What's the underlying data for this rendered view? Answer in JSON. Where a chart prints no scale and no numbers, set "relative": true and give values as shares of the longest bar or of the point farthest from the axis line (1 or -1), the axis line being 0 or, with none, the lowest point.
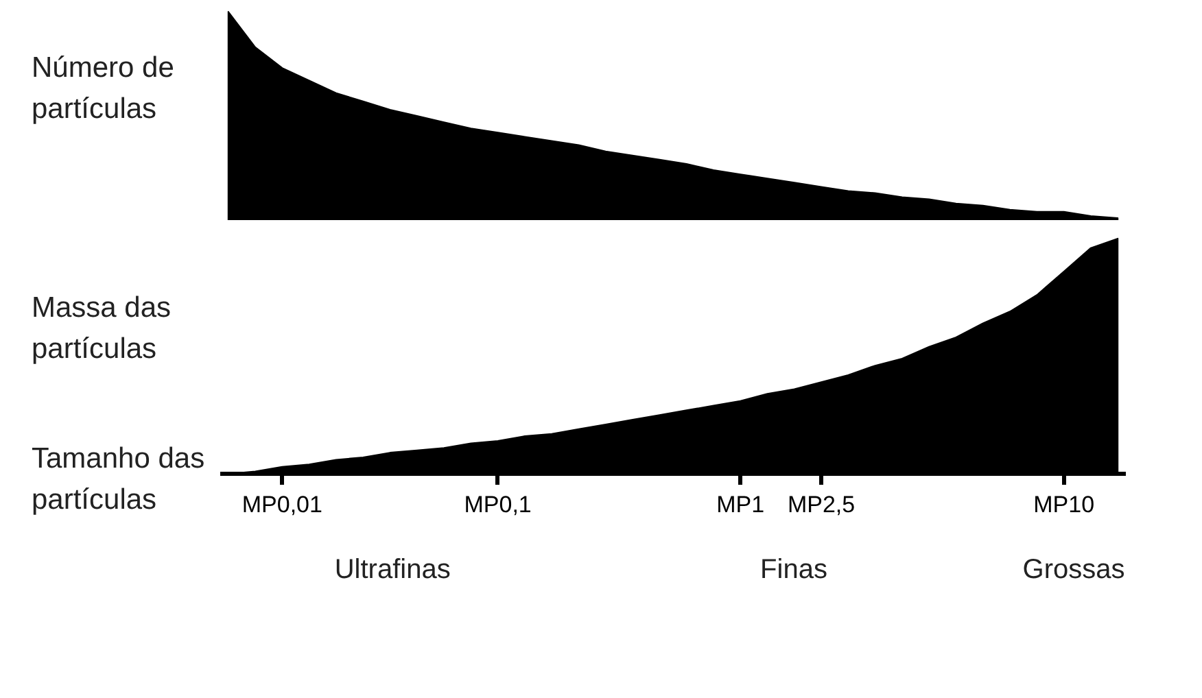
{
  "chart_data": [
    {
      "type": "area",
      "relative": true,
      "ylabel": "Número de partículas",
      "tick_labels": false,
      "grid": false,
      "categories": [
        null,
        null,
        null,
        null,
        null,
        null,
        null,
        null,
        null,
        null,
        null,
        null,
        null,
        null,
        null,
        null,
        null,
        null,
        null,
        null,
        null,
        null,
        null,
        null,
        null,
        null,
        null,
        null,
        null,
        null,
        null,
        null,
        null,
        null
      ],
      "series": [
        {
          "color": "#000000",
          "values": [
            1,
            0.83,
            0.73,
            0.67,
            0.61,
            0.57,
            0.53,
            0.5,
            0.47,
            0.44,
            0.42,
            0.4,
            0.38,
            0.36,
            0.33,
            0.31,
            0.29,
            0.27,
            0.24,
            0.22,
            0.2,
            0.18,
            0.16,
            0.14,
            0.13,
            0.11,
            0.1,
            0.08,
            0.07,
            0.05,
            0.04,
            0.04,
            0.02,
            0.01
          ]
        }
      ]
    },
    {
      "type": "area",
      "relative": true,
      "ylabel": "Massa das partículas",
      "xlabel": "Tamanho das partículas",
      "tick_labels": "x",
      "grid": false,
      "categories": [
        null,
        null,
        "MP0,01",
        null,
        null,
        null,
        null,
        null,
        null,
        null,
        "MP0,1",
        null,
        null,
        null,
        null,
        null,
        null,
        null,
        null,
        "MP1",
        null,
        null,
        "MP2,5",
        null,
        null,
        null,
        null,
        null,
        null,
        null,
        null,
        "MP10",
        null,
        null
      ],
      "series": [
        {
          "color": "#000000",
          "values": [
            0,
            0.01,
            0.03,
            0.04,
            0.06,
            0.07,
            0.09,
            0.1,
            0.11,
            0.13,
            0.14,
            0.16,
            0.17,
            0.19,
            0.21,
            0.23,
            0.25,
            0.27,
            0.29,
            0.31,
            0.34,
            0.36,
            0.39,
            0.42,
            0.46,
            0.49,
            0.54,
            0.58,
            0.64,
            0.69,
            0.76,
            0.86,
            0.96,
            1
          ]
        }
      ],
      "annotations": [
        "Ultrafinas",
        "Finas",
        "Grossas"
      ]
    }
  ]
}
